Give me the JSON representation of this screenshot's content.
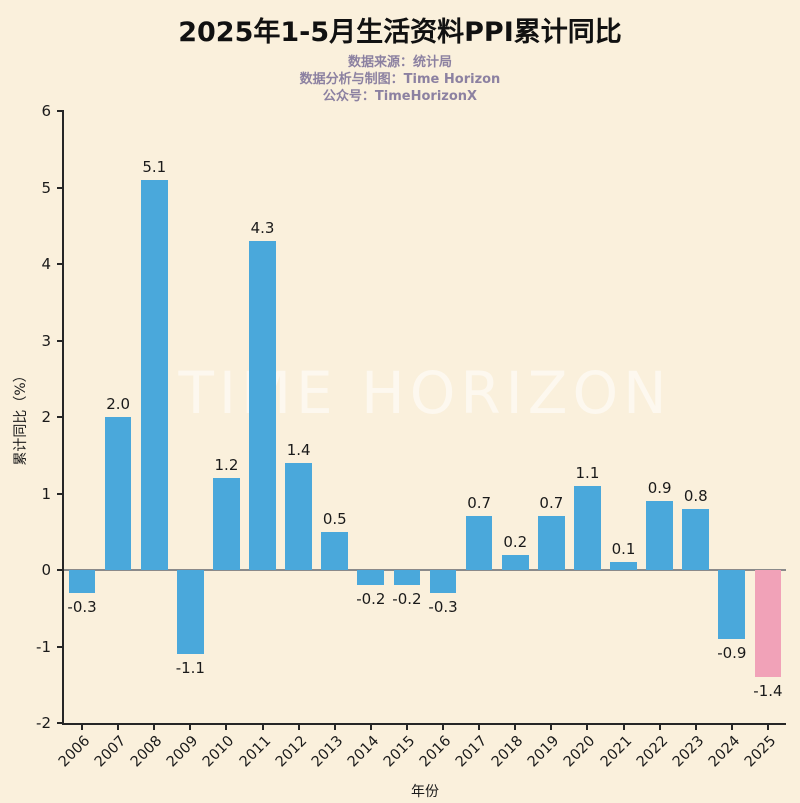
{
  "header": {
    "title": "2025年1-5月生活资料PPI累计同比",
    "subtitles": [
      "数据来源：统计局",
      "数据分析与制图：Time Horizon",
      "公众号：TimeHorizonX"
    ]
  },
  "chart_data": {
    "type": "bar",
    "title": "2025年1-5月生活资料PPI累计同比",
    "categories": [
      "2006",
      "2007",
      "2008",
      "2009",
      "2010",
      "2011",
      "2012",
      "2013",
      "2014",
      "2015",
      "2016",
      "2017",
      "2018",
      "2019",
      "2020",
      "2021",
      "2022",
      "2023",
      "2024",
      "2025"
    ],
    "values": [
      -0.3,
      2.0,
      5.1,
      -1.1,
      1.2,
      4.3,
      1.4,
      0.5,
      -0.2,
      -0.2,
      -0.3,
      0.7,
      0.2,
      0.7,
      1.1,
      0.1,
      0.9,
      0.8,
      -0.9,
      -1.4
    ],
    "xlabel": "年份",
    "ylabel": "累计同比（%）",
    "ylim": [
      -2,
      6
    ],
    "yticks": [
      -2,
      -1,
      0,
      1,
      2,
      3,
      4,
      5,
      6
    ],
    "grid": false,
    "legend": null,
    "bar_color": "#4AA8DB",
    "highlight_color": "#F1A2B8",
    "highlight_index": 19,
    "background_color": "#FAF0DC",
    "watermark": "TIME HORIZON"
  }
}
